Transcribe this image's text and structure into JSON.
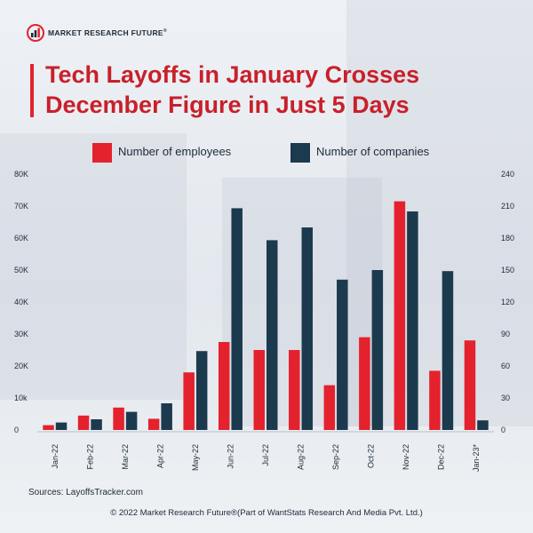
{
  "brand": {
    "name": "MARKET RESEARCH FUTURE",
    "reg": "®"
  },
  "title_line1": "Tech Layoffs in January Crosses",
  "title_line2": "December Figure in Just 5 Days",
  "colors": {
    "employees": "#e3222e",
    "companies": "#1c3a4e",
    "title": "#c8202a",
    "text": "#1d2a38"
  },
  "chart_data": {
    "type": "bar",
    "categories": [
      "Jan-22",
      "Feb-22",
      "Mar-22",
      "Apr-22",
      "May-22",
      "Jun-22",
      "Jul-22",
      "Aug-22",
      "Sep-22",
      "Oct-22",
      "Nov-22",
      "Dec-22",
      "Jan-23*"
    ],
    "series": [
      {
        "name": "Number of employees",
        "axis": "left",
        "values": [
          1500,
          4500,
          7000,
          3500,
          18000,
          27500,
          25000,
          25000,
          14000,
          29000,
          71500,
          18500,
          28000
        ]
      },
      {
        "name": "Number of companies",
        "axis": "right",
        "values": [
          7,
          10,
          17,
          25,
          74,
          208,
          178,
          190,
          141,
          150,
          205,
          149,
          9
        ]
      }
    ],
    "left_axis": {
      "ylim": [
        0,
        80000
      ],
      "ticks": [
        "0",
        "10k",
        "20K",
        "30K",
        "40K",
        "50K",
        "60K",
        "70K",
        "80K"
      ]
    },
    "right_axis": {
      "ylim": [
        0,
        240
      ],
      "ticks": [
        "0",
        "30",
        "60",
        "90",
        "120",
        "150",
        "180",
        "210",
        "240"
      ]
    },
    "legend_position": "top"
  },
  "source": "Sources: LayoffsTracker.com",
  "footer": "© 2022 Market Research Future®(Part of WantStats Research And Media Pvt. Ltd.)"
}
